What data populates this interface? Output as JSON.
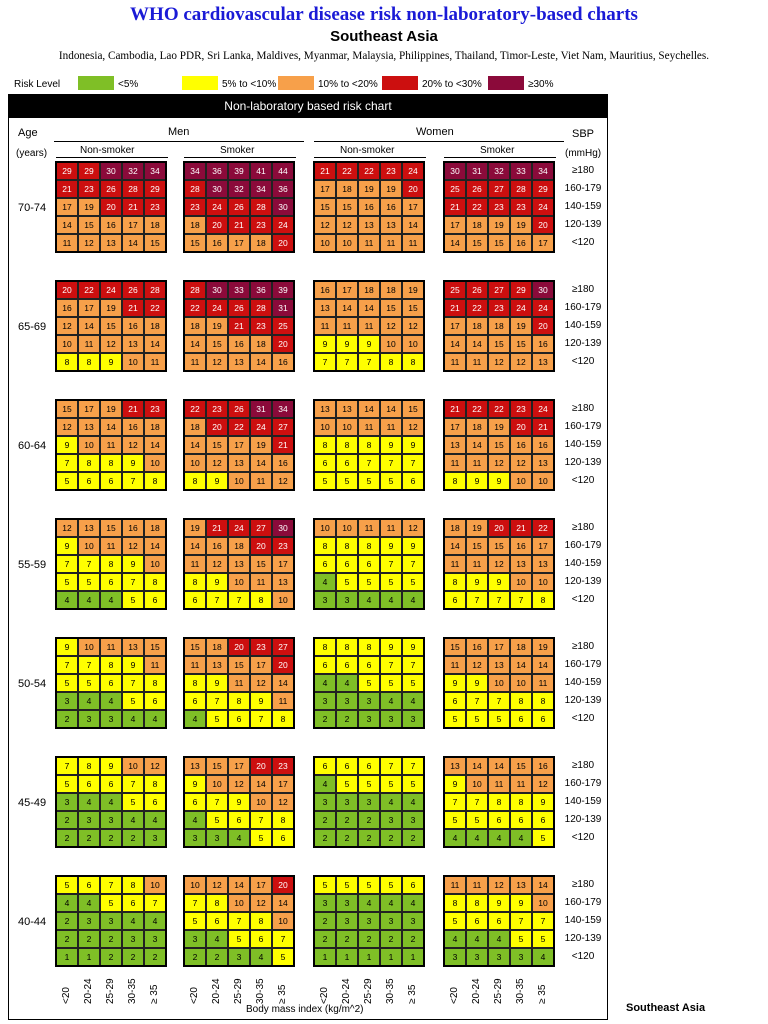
{
  "title": "WHO cardiovascular disease risk non-laboratory-based charts",
  "region": "Southeast Asia",
  "countries": "Indonesia, Cambodia, Lao PDR, Sri Lanka, Maldives, Myanmar, Malaysia, Philippines, Thailand, Timor-Leste,  Viet Nam, Mauritius, Seychelles.",
  "legend": {
    "label": "Risk Level",
    "items": [
      {
        "label": "<5%",
        "color": "#7fbf26"
      },
      {
        "label": "5% to <10%",
        "color": "#ffff00"
      },
      {
        "label": "10% to <20%",
        "color": "#f7a04a"
      },
      {
        "label": "20% to <30%",
        "color": "#cc0f0f"
      },
      {
        "label": "≥30%",
        "color": "#8b0a3a"
      }
    ]
  },
  "chart_data": {
    "type": "heatmap",
    "title": "Non-laboratory based risk chart",
    "row_header": {
      "line1": "Age",
      "line2": "(years)"
    },
    "sbp_header": {
      "line1": "SBP",
      "line2": "(mmHg)"
    },
    "sexes": [
      "Men",
      "Women"
    ],
    "smoking": [
      "Non-smoker",
      "Smoker"
    ],
    "panel_order": [
      {
        "sex": "Men",
        "smoking": "Non-smoker"
      },
      {
        "sex": "Men",
        "smoking": "Smoker"
      },
      {
        "sex": "Women",
        "smoking": "Non-smoker"
      },
      {
        "sex": "Women",
        "smoking": "Smoker"
      }
    ],
    "sbp_categories": [
      "≥180",
      "160-179",
      "140-159",
      "120-139",
      "<120"
    ],
    "bmi_categories": [
      "<20",
      "20-24",
      "25-29",
      "30-35",
      "≥ 35"
    ],
    "xlabel": "Body mass index (kg/m^2)",
    "ages": [
      {
        "age": "70-74",
        "panels": [
          [
            [
              29,
              29,
              30,
              32,
              34
            ],
            [
              21,
              23,
              26,
              28,
              29
            ],
            [
              17,
              19,
              20,
              21,
              23
            ],
            [
              14,
              15,
              16,
              17,
              18
            ],
            [
              11,
              12,
              13,
              14,
              15
            ]
          ],
          [
            [
              34,
              36,
              39,
              41,
              44
            ],
            [
              28,
              30,
              32,
              34,
              36
            ],
            [
              23,
              24,
              26,
              28,
              30
            ],
            [
              18,
              20,
              21,
              23,
              24
            ],
            [
              15,
              16,
              17,
              18,
              20
            ]
          ],
          [
            [
              21,
              22,
              22,
              23,
              24
            ],
            [
              17,
              18,
              19,
              19,
              20
            ],
            [
              15,
              15,
              16,
              16,
              17
            ],
            [
              12,
              12,
              13,
              13,
              14
            ],
            [
              10,
              10,
              11,
              11,
              11
            ]
          ],
          [
            [
              30,
              31,
              32,
              33,
              34
            ],
            [
              25,
              26,
              27,
              28,
              29
            ],
            [
              21,
              22,
              23,
              23,
              24
            ],
            [
              17,
              18,
              19,
              19,
              20
            ],
            [
              14,
              15,
              15,
              16,
              17
            ]
          ]
        ]
      },
      {
        "age": "65-69",
        "panels": [
          [
            [
              20,
              22,
              24,
              26,
              28
            ],
            [
              16,
              17,
              19,
              21,
              22
            ],
            [
              12,
              14,
              15,
              16,
              18
            ],
            [
              10,
              11,
              12,
              13,
              14
            ],
            [
              8,
              8,
              9,
              10,
              11
            ]
          ],
          [
            [
              28,
              30,
              33,
              36,
              39
            ],
            [
              22,
              24,
              26,
              28,
              31
            ],
            [
              18,
              19,
              21,
              23,
              25
            ],
            [
              14,
              15,
              16,
              18,
              20
            ],
            [
              11,
              12,
              13,
              14,
              16
            ]
          ],
          [
            [
              16,
              17,
              18,
              18,
              19
            ],
            [
              13,
              14,
              14,
              15,
              15
            ],
            [
              11,
              11,
              11,
              12,
              12
            ],
            [
              9,
              9,
              9,
              10,
              10
            ],
            [
              7,
              7,
              7,
              8,
              8
            ]
          ],
          [
            [
              25,
              26,
              27,
              29,
              30
            ],
            [
              21,
              22,
              23,
              24,
              24
            ],
            [
              17,
              18,
              18,
              19,
              20
            ],
            [
              14,
              14,
              15,
              15,
              16
            ],
            [
              11,
              11,
              12,
              12,
              13
            ]
          ]
        ]
      },
      {
        "age": "60-64",
        "panels": [
          [
            [
              15,
              17,
              19,
              21,
              23
            ],
            [
              12,
              13,
              14,
              16,
              18
            ],
            [
              9,
              10,
              11,
              12,
              14
            ],
            [
              7,
              8,
              8,
              9,
              10
            ],
            [
              5,
              6,
              6,
              7,
              8
            ]
          ],
          [
            [
              22,
              23,
              26,
              31,
              34
            ],
            [
              18,
              20,
              22,
              24,
              27
            ],
            [
              14,
              15,
              17,
              19,
              21
            ],
            [
              10,
              12,
              13,
              14,
              16
            ],
            [
              8,
              9,
              10,
              11,
              12
            ]
          ],
          [
            [
              13,
              13,
              14,
              14,
              15
            ],
            [
              10,
              10,
              11,
              11,
              12
            ],
            [
              8,
              8,
              8,
              9,
              9
            ],
            [
              6,
              6,
              7,
              7,
              7
            ],
            [
              5,
              5,
              5,
              5,
              6
            ]
          ],
          [
            [
              21,
              22,
              22,
              23,
              24
            ],
            [
              17,
              18,
              19,
              20,
              21
            ],
            [
              13,
              14,
              15,
              16,
              16
            ],
            [
              11,
              11,
              12,
              12,
              13
            ],
            [
              8,
              9,
              9,
              10,
              10
            ]
          ]
        ]
      },
      {
        "age": "55-59",
        "panels": [
          [
            [
              12,
              13,
              15,
              16,
              18
            ],
            [
              9,
              10,
              11,
              12,
              14
            ],
            [
              7,
              7,
              8,
              9,
              10
            ],
            [
              5,
              5,
              6,
              7,
              8
            ],
            [
              4,
              4,
              4,
              5,
              6
            ]
          ],
          [
            [
              19,
              21,
              24,
              27,
              30
            ],
            [
              14,
              16,
              18,
              20,
              23
            ],
            [
              11,
              12,
              13,
              15,
              17
            ],
            [
              8,
              9,
              10,
              11,
              13
            ],
            [
              6,
              7,
              7,
              8,
              10
            ]
          ],
          [
            [
              10,
              10,
              11,
              11,
              12
            ],
            [
              8,
              8,
              8,
              9,
              9
            ],
            [
              6,
              6,
              6,
              7,
              7
            ],
            [
              4,
              5,
              5,
              5,
              5
            ],
            [
              3,
              3,
              4,
              4,
              4
            ]
          ],
          [
            [
              18,
              19,
              20,
              21,
              22
            ],
            [
              14,
              15,
              15,
              16,
              17
            ],
            [
              11,
              11,
              12,
              13,
              13
            ],
            [
              8,
              9,
              9,
              10,
              10
            ],
            [
              6,
              7,
              7,
              7,
              8
            ]
          ]
        ]
      },
      {
        "age": "50-54",
        "panels": [
          [
            [
              9,
              10,
              11,
              13,
              15
            ],
            [
              7,
              7,
              8,
              9,
              11
            ],
            [
              5,
              5,
              6,
              7,
              8
            ],
            [
              3,
              4,
              4,
              5,
              6
            ],
            [
              2,
              3,
              3,
              4,
              4
            ]
          ],
          [
            [
              15,
              18,
              20,
              23,
              27
            ],
            [
              11,
              13,
              15,
              17,
              20
            ],
            [
              8,
              9,
              11,
              12,
              14
            ],
            [
              6,
              7,
              8,
              9,
              11
            ],
            [
              4,
              5,
              6,
              7,
              8
            ]
          ],
          [
            [
              8,
              8,
              8,
              9,
              9
            ],
            [
              6,
              6,
              6,
              7,
              7
            ],
            [
              4,
              4,
              5,
              5,
              5
            ],
            [
              3,
              3,
              3,
              4,
              4
            ],
            [
              2,
              2,
              3,
              3,
              3
            ]
          ],
          [
            [
              15,
              16,
              17,
              18,
              19
            ],
            [
              11,
              12,
              13,
              14,
              14
            ],
            [
              9,
              9,
              10,
              10,
              11
            ],
            [
              6,
              7,
              7,
              8,
              8
            ],
            [
              5,
              5,
              5,
              6,
              6
            ]
          ]
        ]
      },
      {
        "age": "45-49",
        "panels": [
          [
            [
              7,
              8,
              9,
              10,
              12
            ],
            [
              5,
              6,
              6,
              7,
              8
            ],
            [
              3,
              4,
              4,
              5,
              6
            ],
            [
              2,
              3,
              3,
              4,
              4
            ],
            [
              2,
              2,
              2,
              2,
              3
            ]
          ],
          [
            [
              13,
              15,
              17,
              20,
              23
            ],
            [
              9,
              10,
              12,
              14,
              17
            ],
            [
              6,
              7,
              9,
              10,
              12
            ],
            [
              4,
              5,
              6,
              7,
              8
            ],
            [
              3,
              3,
              4,
              5,
              6
            ]
          ],
          [
            [
              6,
              6,
              6,
              7,
              7
            ],
            [
              4,
              5,
              5,
              5,
              5
            ],
            [
              3,
              3,
              3,
              4,
              4
            ],
            [
              2,
              2,
              2,
              3,
              3
            ],
            [
              2,
              2,
              2,
              2,
              2
            ]
          ],
          [
            [
              13,
              14,
              14,
              15,
              16
            ],
            [
              9,
              10,
              11,
              11,
              12
            ],
            [
              7,
              7,
              8,
              8,
              9
            ],
            [
              5,
              5,
              6,
              6,
              6
            ],
            [
              4,
              4,
              4,
              4,
              5
            ]
          ]
        ]
      },
      {
        "age": "40-44",
        "panels": [
          [
            [
              5,
              6,
              7,
              8,
              10
            ],
            [
              4,
              4,
              5,
              6,
              7
            ],
            [
              2,
              3,
              3,
              4,
              4
            ],
            [
              2,
              2,
              2,
              3,
              3
            ],
            [
              1,
              1,
              2,
              2,
              2
            ]
          ],
          [
            [
              10,
              12,
              14,
              17,
              20
            ],
            [
              7,
              8,
              10,
              12,
              14
            ],
            [
              5,
              6,
              7,
              8,
              10
            ],
            [
              3,
              4,
              5,
              6,
              7
            ],
            [
              2,
              2,
              3,
              4,
              5
            ]
          ],
          [
            [
              5,
              5,
              5,
              5,
              6
            ],
            [
              3,
              3,
              4,
              4,
              4
            ],
            [
              2,
              3,
              3,
              3,
              3
            ],
            [
              2,
              2,
              2,
              2,
              2
            ],
            [
              1,
              1,
              1,
              1,
              1
            ]
          ],
          [
            [
              11,
              11,
              12,
              13,
              14
            ],
            [
              8,
              8,
              9,
              9,
              10
            ],
            [
              5,
              6,
              6,
              7,
              7
            ],
            [
              4,
              4,
              4,
              5,
              5
            ],
            [
              3,
              3,
              3,
              3,
              4
            ]
          ]
        ]
      }
    ]
  },
  "footer": "Southeast Asia"
}
